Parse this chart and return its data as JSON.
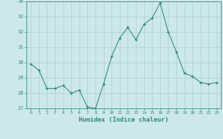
{
  "title": "",
  "xlabel": "Humidex (Indice chaleur)",
  "ylabel": "",
  "x": [
    0,
    1,
    2,
    3,
    4,
    5,
    6,
    7,
    8,
    9,
    10,
    11,
    12,
    13,
    14,
    15,
    16,
    17,
    18,
    19,
    20,
    21,
    22,
    23
  ],
  "y": [
    29.9,
    29.5,
    28.3,
    28.3,
    28.5,
    28.0,
    28.2,
    27.1,
    27.0,
    28.6,
    30.4,
    31.6,
    32.3,
    31.5,
    32.5,
    32.9,
    33.9,
    32.0,
    30.7,
    29.3,
    29.1,
    28.7,
    28.6,
    28.7
  ],
  "line_color": "#2e8b72",
  "marker_color": "#2e8b72",
  "bg_color": "#cce8e8",
  "grid_color": "#aacece",
  "axis_color": "#2e8b72",
  "tick_color": "#2e8b72",
  "label_color": "#2e8b72",
  "ylim": [
    27,
    34
  ],
  "yticks": [
    27,
    28,
    29,
    30,
    31,
    32,
    33,
    34
  ],
  "xticks": [
    0,
    1,
    2,
    3,
    4,
    5,
    6,
    7,
    8,
    9,
    10,
    11,
    12,
    13,
    14,
    15,
    16,
    17,
    18,
    19,
    20,
    21,
    22,
    23
  ]
}
